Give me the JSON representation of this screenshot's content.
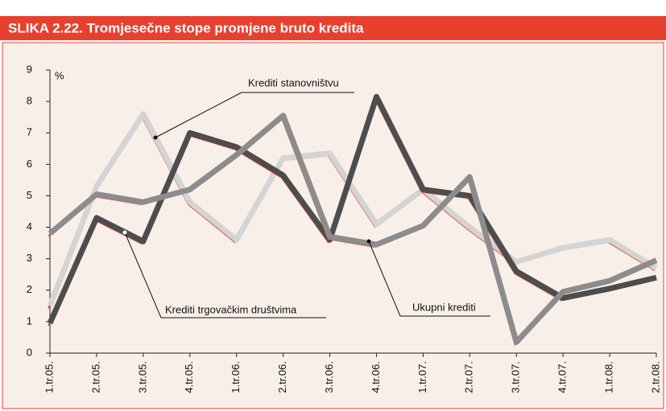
{
  "chart_data": {
    "type": "line",
    "title": "SLIKA 2.22. Tromjesečne stope promjene bruto kredita",
    "y_label": "%",
    "categories": [
      "1.tr.05.",
      "2.tr.05.",
      "3.tr.05.",
      "4.tr.05.",
      "1.tr.06.",
      "2.tr.06.",
      "3.tr.06.",
      "4.tr.06.",
      "1.tr.07.",
      "2.tr.07.",
      "3.tr.07.",
      "4.tr.07.",
      "1.tr.08.",
      "2.tr.08."
    ],
    "series": [
      {
        "name": "Krediti stanovništvu",
        "color": "#d4d4d4",
        "values": [
          1.5,
          5.3,
          7.6,
          4.8,
          3.6,
          6.2,
          6.35,
          4.1,
          5.2,
          4.0,
          2.9,
          3.35,
          3.6,
          2.7
        ]
      },
      {
        "name": "Krediti trgovačkim društvima",
        "color": "#4d4d4d",
        "values": [
          0.95,
          4.3,
          3.55,
          7.0,
          6.55,
          5.65,
          3.6,
          8.15,
          5.2,
          5.0,
          2.6,
          1.75,
          2.05,
          2.4
        ]
      },
      {
        "name": "Ukupni krediti",
        "color": "#8c8c8c",
        "values": [
          3.8,
          5.05,
          4.8,
          5.2,
          6.3,
          7.55,
          3.7,
          3.45,
          4.05,
          5.6,
          0.35,
          1.95,
          2.3,
          2.95
        ]
      }
    ],
    "shadow_color": "#e8402f",
    "ylim": [
      0,
      9
    ],
    "yticks": [
      0,
      1,
      2,
      3,
      4,
      5,
      6,
      7,
      8,
      9
    ]
  }
}
